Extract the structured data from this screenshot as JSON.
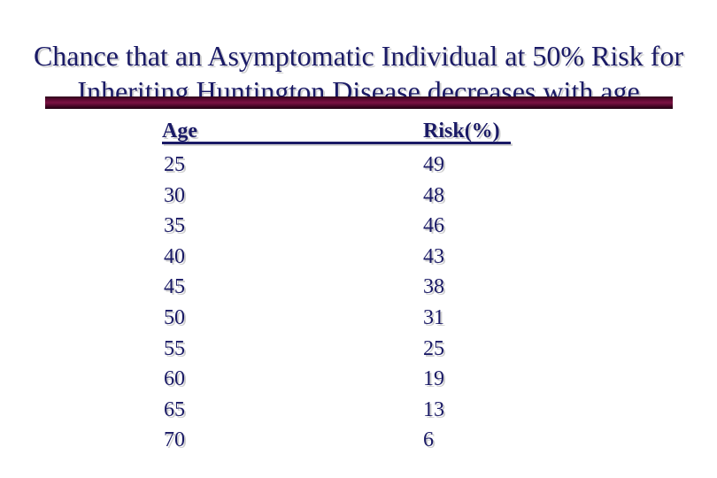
{
  "slide": {
    "title_lines": [
      "Chance that an Asymptomatic Individual at 50% Risk for",
      "Inheriting Huntington Disease decreases with age"
    ],
    "table": {
      "col_headers": [
        "Age",
        "Risk(%)"
      ],
      "rows": [
        [
          25,
          49
        ],
        [
          30,
          48
        ],
        [
          35,
          46
        ],
        [
          40,
          43
        ],
        [
          45,
          38
        ],
        [
          50,
          31
        ],
        [
          55,
          25
        ],
        [
          60,
          19
        ],
        [
          65,
          13
        ],
        [
          70,
          6
        ]
      ]
    },
    "colors": {
      "text_navy": "#1a1a66",
      "divider_maroon": "#7b1243",
      "shadow_gray": "#cfcfcf",
      "background": "#ffffff"
    }
  }
}
